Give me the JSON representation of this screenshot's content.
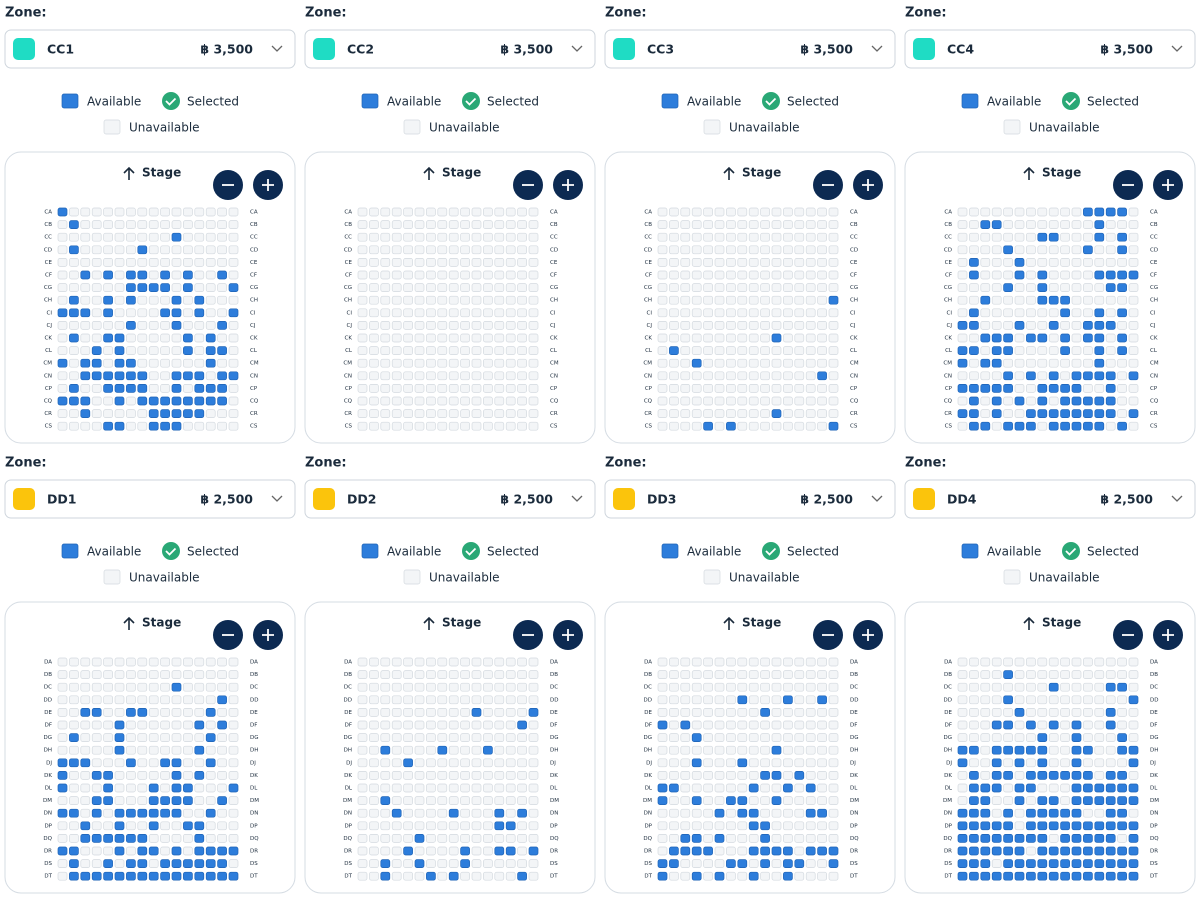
{
  "zone_label": "Zone:",
  "legend": {
    "available": "Available",
    "selected": "Selected",
    "unavailable": "Unavailable"
  },
  "stage": "Stage",
  "groups": [
    {
      "color": "#1fdcc4",
      "rows": [
        "CA",
        "CB",
        "CC",
        "CD",
        "CE",
        "CF",
        "CG",
        "CH",
        "CI",
        "CJ",
        "CK",
        "CL",
        "CM",
        "CN",
        "CP",
        "CQ",
        "CR",
        "CS"
      ],
      "panels": [
        {
          "zone": "CC1",
          "price": "฿ 3,500"
        },
        {
          "zone": "CC2",
          "price": "฿ 3,500"
        },
        {
          "zone": "CC3",
          "price": "฿ 3,500"
        },
        {
          "zone": "CC4",
          "price": "฿ 3,500"
        }
      ]
    },
    {
      "color": "#fbc40c",
      "rows": [
        "DA",
        "DB",
        "DC",
        "DD",
        "DE",
        "DF",
        "DG",
        "DH",
        "DJ",
        "DK",
        "DL",
        "DM",
        "DN",
        "DP",
        "DQ",
        "DR",
        "DS",
        "DT"
      ],
      "panels": [
        {
          "zone": "DD1",
          "price": "฿ 2,500"
        },
        {
          "zone": "DD2",
          "price": "฿ 2,500"
        },
        {
          "zone": "DD3",
          "price": "฿ 2,500"
        },
        {
          "zone": "DD4",
          "price": "฿ 2,500"
        }
      ]
    }
  ]
}
